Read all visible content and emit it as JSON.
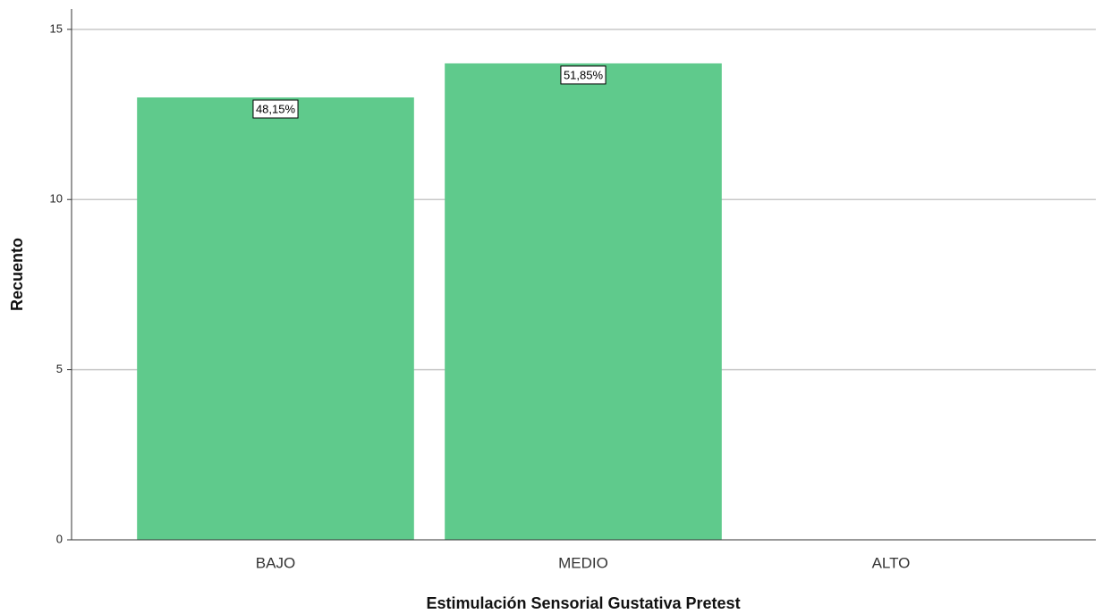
{
  "chart_data": {
    "type": "bar",
    "x_label": "Estimulación Sensorial Gustativa Pretest",
    "y_label": "Recuento",
    "categories": [
      "BAJO",
      "MEDIO",
      "ALTO"
    ],
    "values": [
      13,
      14,
      0
    ],
    "data_labels": [
      "48,15%",
      "51,85%",
      null
    ],
    "color": "#5fca8c",
    "ylim": [
      0,
      15.6
    ],
    "yticks": [
      0,
      5,
      10,
      15
    ],
    "grid": true
  }
}
